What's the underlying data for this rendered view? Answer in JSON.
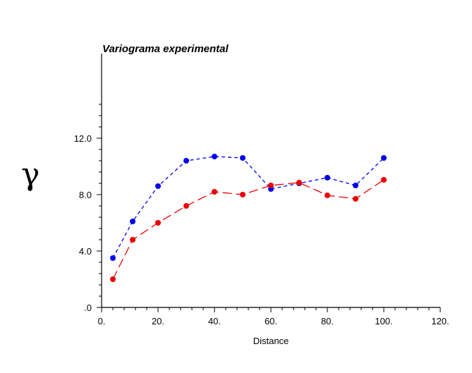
{
  "chart_data": {
    "type": "line",
    "title": "Variograma experimental",
    "xlabel": "Distance",
    "ylabel": "γ",
    "xlim": [
      0,
      120
    ],
    "ylim": [
      0,
      14.4
    ],
    "x_ticks": [
      0,
      20,
      40,
      60,
      80,
      100,
      120
    ],
    "x_tick_labels": [
      "0.",
      "20.",
      "40.",
      "60.",
      "80.",
      "100.",
      "120."
    ],
    "y_ticks": [
      0,
      4,
      8,
      12
    ],
    "y_tick_labels": [
      ".0",
      "4.0",
      "8.0",
      "12.0"
    ],
    "grid": false,
    "series": [
      {
        "color": "#0000ee",
        "dash": "short",
        "x": [
          4,
          11,
          20,
          30,
          40,
          50,
          60,
          70,
          80,
          90,
          100
        ],
        "y": [
          3.5,
          6.1,
          8.6,
          10.4,
          10.7,
          10.6,
          8.4,
          8.8,
          9.2,
          8.65,
          10.6
        ]
      },
      {
        "color": "#ee0000",
        "dash": "long",
        "x": [
          4,
          11,
          20,
          30,
          40,
          50,
          60,
          70,
          80,
          90,
          100
        ],
        "y": [
          2.0,
          4.8,
          6.0,
          7.2,
          8.2,
          8.0,
          8.65,
          8.85,
          7.95,
          7.7,
          9.05
        ]
      }
    ]
  }
}
